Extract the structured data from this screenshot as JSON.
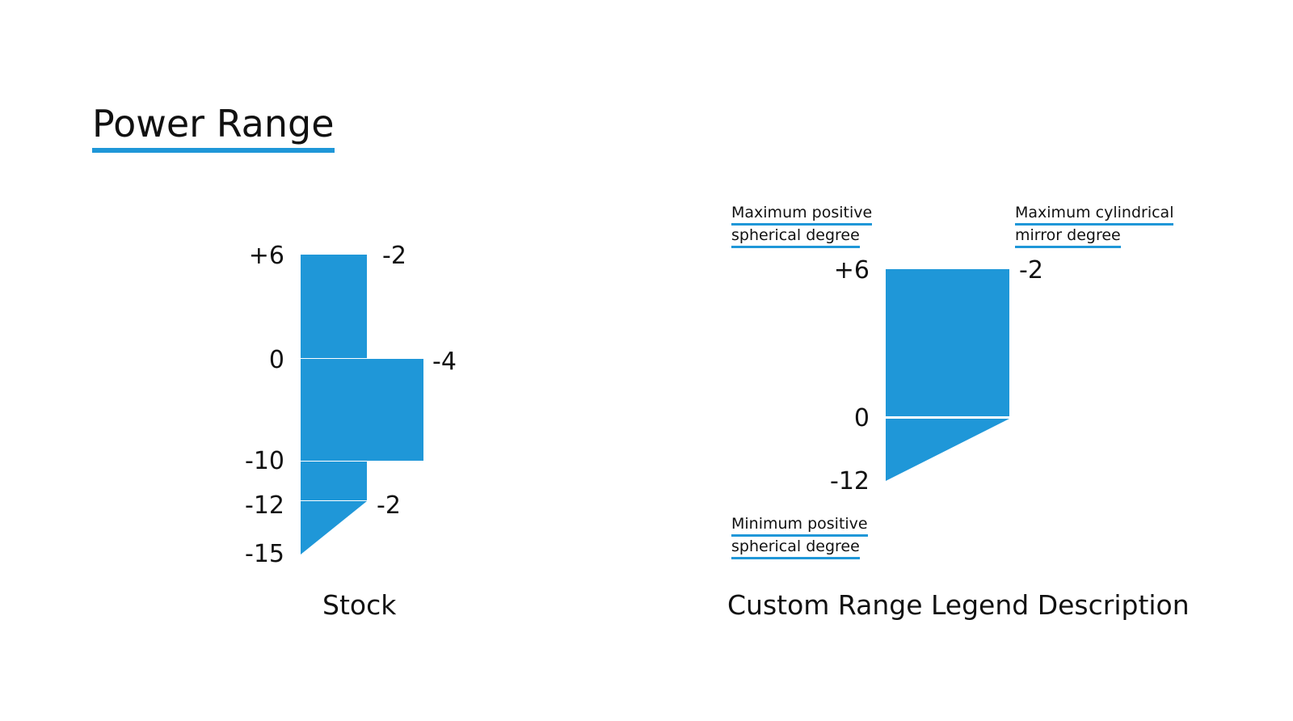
{
  "title": "Power Range",
  "accent_color": "#1f97d8",
  "stock": {
    "caption": "Stock",
    "sph_labels": [
      "+6",
      "0",
      "-10",
      "-12",
      "-15"
    ],
    "cyl_labels": [
      "-2",
      "-4",
      "-2"
    ]
  },
  "custom": {
    "caption": "Custom Range Legend Description",
    "sph_labels": [
      "+6",
      "0",
      "-12"
    ],
    "cyl_label": "-2",
    "legend": {
      "max_positive_spherical": [
        "Maximum positive",
        "spherical degree"
      ],
      "max_cylindrical": [
        "Maximum cylindrical",
        "mirror degree"
      ],
      "min_positive_spherical": [
        "Minimum positive",
        "spherical degree"
      ]
    }
  }
}
